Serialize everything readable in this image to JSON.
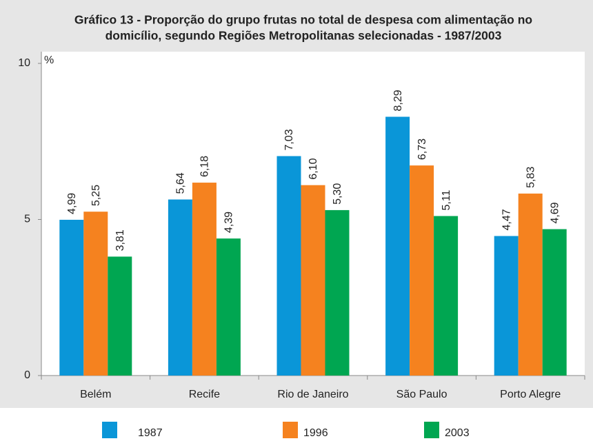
{
  "chart_data": {
    "type": "bar",
    "title": [
      "Gráfico 13 - Proporção do grupo frutas no total de despesa com alimentação no",
      "domicílio, segundo Regiões Metropolitanas selecionadas - 1987/2003"
    ],
    "y_label": "%",
    "categories": [
      "Belém",
      "Recife",
      "Rio de Janeiro",
      "São Paulo",
      "Porto Alegre"
    ],
    "series": [
      {
        "name": "1987",
        "color": "#0a96d8",
        "values": [
          4.99,
          5.64,
          7.03,
          8.29,
          4.47
        ],
        "value_labels": [
          "4,99",
          "5,64",
          "7,03",
          "8,29",
          "4,47"
        ]
      },
      {
        "name": "1996",
        "color": "#f5821f",
        "values": [
          5.25,
          6.18,
          6.1,
          6.73,
          5.83
        ],
        "value_labels": [
          "5,25",
          "6,18",
          "6,10",
          "6,73",
          "5,83"
        ]
      },
      {
        "name": "2003",
        "color": "#00a651",
        "values": [
          3.81,
          4.39,
          5.3,
          5.11,
          4.69
        ],
        "value_labels": [
          "3,81",
          "4,39",
          "5,30",
          "5,11",
          "4,69"
        ]
      }
    ],
    "ylim": [
      0,
      10
    ],
    "yticks": [
      0,
      5,
      10
    ]
  }
}
